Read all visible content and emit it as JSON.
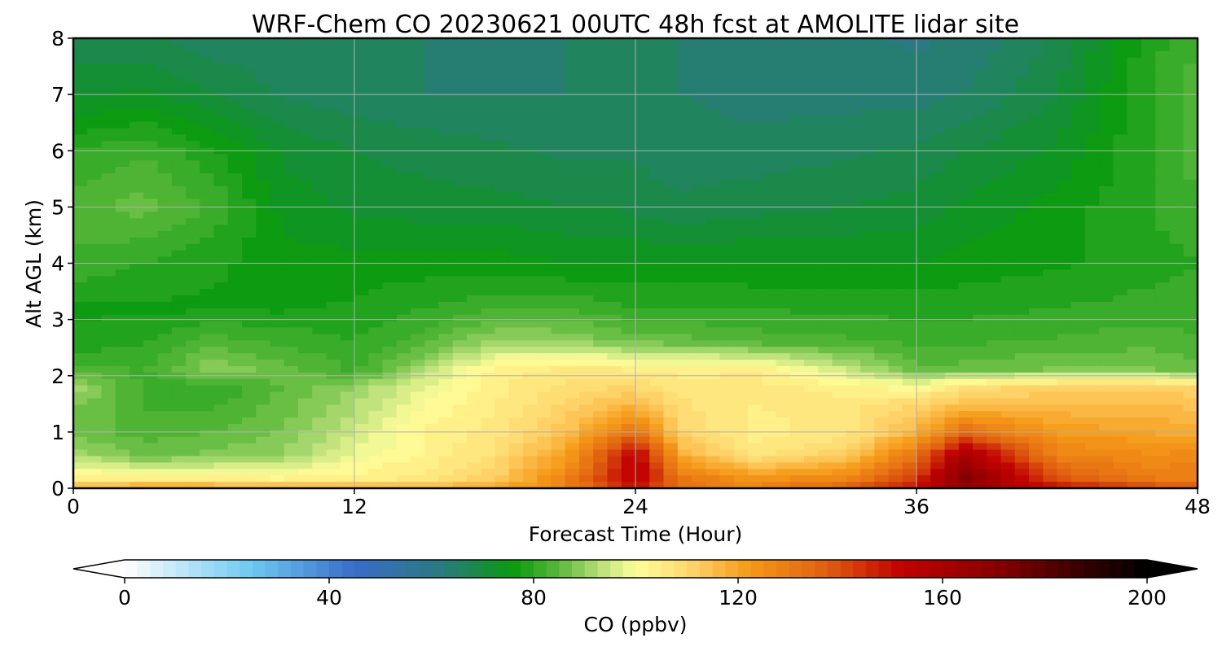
{
  "chart_data": {
    "type": "heatmap",
    "title": "WRF-Chem CO  20230621 00UTC 48h fcst at AMOLITE lidar site",
    "xlabel": "Forecast Time (Hour)",
    "ylabel": "Alt AGL (km)",
    "xlim": [
      0,
      48
    ],
    "ylim": [
      0,
      8
    ],
    "x_ticks": [
      0,
      12,
      24,
      36,
      48
    ],
    "y_ticks": [
      0,
      1,
      2,
      3,
      4,
      5,
      6,
      7,
      8
    ],
    "grid": true,
    "colorbar": {
      "label": "CO  (ppbv)",
      "range": [
        0,
        200
      ],
      "step": 2.5,
      "ticks": [
        0,
        40,
        80,
        120,
        160,
        200
      ],
      "extend": "both",
      "orientation": "horizontal",
      "stops": [
        {
          "v": 0,
          "c": "#ffffff"
        },
        {
          "v": 25,
          "c": "#6cc8f0"
        },
        {
          "v": 45,
          "c": "#3a6cc8"
        },
        {
          "v": 62,
          "c": "#2a7a80"
        },
        {
          "v": 76,
          "c": "#0a9a10"
        },
        {
          "v": 85,
          "c": "#5ab83a"
        },
        {
          "v": 93,
          "c": "#b8e07a"
        },
        {
          "v": 100,
          "c": "#ffff9a"
        },
        {
          "v": 110,
          "c": "#ffd870"
        },
        {
          "v": 122,
          "c": "#f59a18"
        },
        {
          "v": 137,
          "c": "#e06010"
        },
        {
          "v": 152,
          "c": "#c00000"
        },
        {
          "v": 170,
          "c": "#8a0000"
        },
        {
          "v": 190,
          "c": "#2a0000"
        },
        {
          "v": 200,
          "c": "#000000"
        }
      ]
    },
    "field": {
      "x": [
        0,
        3,
        6,
        9,
        12,
        15,
        18,
        21,
        23,
        24,
        26,
        29,
        33,
        36,
        38,
        42,
        46,
        48
      ],
      "y": [
        0,
        0.15,
        0.6,
        1.0,
        1.5,
        1.8,
        2.1,
        2.6,
        3.2,
        4,
        5,
        6,
        7,
        8
      ],
      "z": [
        [
          120,
          122,
          122,
          120,
          118,
          118,
          120,
          128,
          142,
          148,
          132,
          128,
          138,
          150,
          165,
          150,
          142,
          140
        ],
        [
          105,
          104,
          104,
          103,
          104,
          106,
          112,
          128,
          145,
          155,
          132,
          124,
          128,
          144,
          172,
          140,
          130,
          130
        ],
        [
          92,
          86,
          88,
          90,
          98,
          103,
          108,
          120,
          142,
          155,
          118,
          106,
          112,
          132,
          160,
          128,
          125,
          126
        ],
        [
          86,
          84,
          85,
          88,
          95,
          103,
          106,
          114,
          126,
          132,
          110,
          104,
          106,
          117,
          134,
          122,
          120,
          118
        ],
        [
          88,
          82,
          82,
          86,
          92,
          100,
          105,
          110,
          114,
          116,
          108,
          105,
          106,
          110,
          114,
          115,
          115,
          114
        ],
        [
          92,
          82,
          80,
          85,
          90,
          98,
          104,
          108,
          110,
          110,
          106,
          106,
          104,
          100,
          108,
          112,
          112,
          110
        ],
        [
          84,
          82,
          90,
          86,
          82,
          92,
          104,
          106,
          106,
          104,
          104,
          105,
          95,
          86,
          86,
          88,
          88,
          86
        ],
        [
          78,
          80,
          84,
          82,
          80,
          84,
          91,
          90,
          88,
          87,
          86,
          84,
          83,
          82,
          82,
          83,
          84,
          83
        ],
        [
          77,
          77,
          77,
          77,
          78,
          80,
          82,
          82,
          81,
          80,
          80,
          80,
          79,
          79,
          79,
          80,
          81,
          81
        ],
        [
          82,
          80,
          78,
          76,
          76,
          76,
          76,
          75,
          75,
          75,
          75,
          75,
          75,
          75,
          76,
          77,
          79,
          80
        ],
        [
          84,
          86,
          82,
          74,
          72,
          71,
          71,
          70,
          70,
          69,
          68,
          69,
          70,
          71,
          73,
          76,
          80,
          82
        ],
        [
          80,
          82,
          78,
          72,
          70,
          69,
          68,
          67,
          67,
          67,
          66,
          66,
          67,
          68,
          70,
          73,
          80,
          84
        ],
        [
          72,
          73,
          70,
          67,
          66,
          65,
          65,
          65,
          66,
          66,
          65,
          64,
          64,
          64,
          65,
          70,
          80,
          84
        ],
        [
          68,
          68,
          66,
          66,
          66,
          65,
          64,
          65,
          66,
          66,
          65,
          64,
          63,
          62,
          63,
          68,
          79,
          82
        ]
      ]
    }
  }
}
